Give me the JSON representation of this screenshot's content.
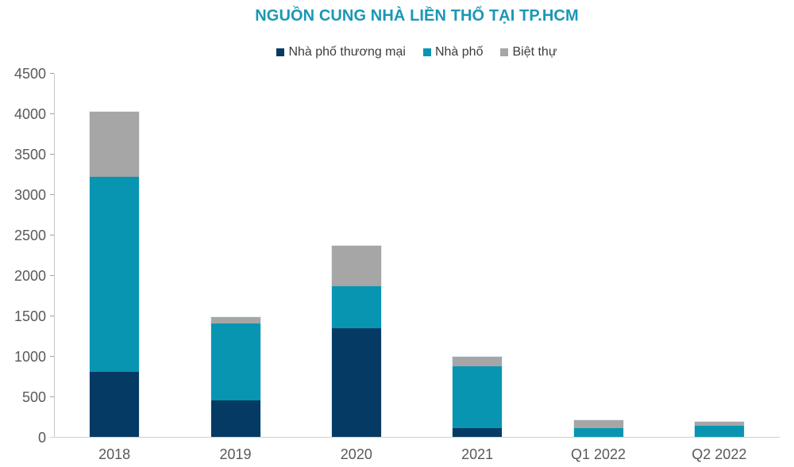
{
  "chart_data": {
    "type": "bar",
    "stacked": true,
    "title": "NGUỒN CUNG NHÀ LIỀN THỔ TẠI TP.HCM",
    "categories": [
      "2018",
      "2019",
      "2020",
      "2021",
      "Q1 2022",
      "Q2 2022"
    ],
    "series": [
      {
        "name": "Nhà phố thương mại",
        "color": "#053a64",
        "values": [
          800,
          450,
          1340,
          110,
          0,
          0
        ]
      },
      {
        "name": "Nhà phố",
        "color": "#0895b2",
        "values": [
          2420,
          950,
          520,
          760,
          110,
          140
        ]
      },
      {
        "name": "Biệt thự",
        "color": "#a6a6a6",
        "values": [
          800,
          85,
          500,
          120,
          95,
          50
        ]
      }
    ],
    "totals": [
      4020,
      1485,
      2360,
      990,
      205,
      190
    ],
    "ylim": [
      0,
      4500
    ],
    "yticks": [
      0,
      500,
      1000,
      1500,
      2000,
      2500,
      3000,
      3500,
      4000,
      4500
    ],
    "xlabel": "",
    "ylabel": "",
    "legend_position": "top",
    "grid": false
  },
  "colors": {
    "title": "#1a97b5",
    "axis_text": "#595959",
    "legend_text": "#3d3d3d",
    "axis_line": "#c8c8c8",
    "tick": "#9aa2aa",
    "baseline": "#d0d0d0",
    "background": "#ffffff"
  }
}
